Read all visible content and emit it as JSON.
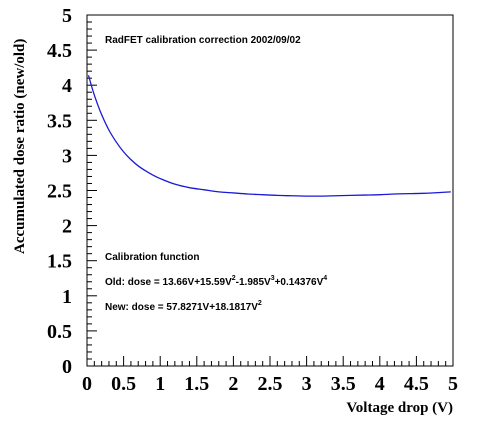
{
  "chart_data": {
    "type": "line",
    "title": "RadFET calibration correction 2002/09/02",
    "xlabel": "Voltage drop (V)",
    "ylabel": "Accumulated dose ratio (new/old)",
    "xlim": [
      0,
      5
    ],
    "ylim": [
      0,
      5
    ],
    "xticks": [
      "0",
      "0.5",
      "1",
      "1.5",
      "2",
      "2.5",
      "3",
      "3.5",
      "4",
      "4.5",
      "5"
    ],
    "yticks": [
      "0",
      "0.5",
      "1",
      "1.5",
      "2",
      "2.5",
      "3",
      "3.5",
      "4",
      "4.5",
      "5"
    ],
    "grid": false,
    "series": [
      {
        "color": "#1a1ad6",
        "x": [
          0.02,
          0.1,
          0.2,
          0.3,
          0.4,
          0.5,
          0.6,
          0.7,
          0.8,
          0.9,
          1.0,
          1.2,
          1.4,
          1.6,
          1.8,
          2.0,
          2.2,
          2.4,
          2.6,
          2.8,
          3.0,
          3.2,
          3.4,
          3.6,
          3.8,
          4.0,
          4.2,
          4.4,
          4.6,
          4.8,
          4.97
        ],
        "y": [
          4.14,
          3.86,
          3.58,
          3.36,
          3.19,
          3.05,
          2.94,
          2.85,
          2.78,
          2.72,
          2.67,
          2.59,
          2.54,
          2.51,
          2.48,
          2.465,
          2.45,
          2.44,
          2.43,
          2.425,
          2.42,
          2.42,
          2.425,
          2.43,
          2.435,
          2.44,
          2.45,
          2.455,
          2.46,
          2.47,
          2.48
        ]
      }
    ],
    "annotations": {
      "heading": "Calibration function",
      "old": {
        "prefix": "Old: dose = 13.66V+15.59V",
        "sup1": "2",
        "mid1": "-1.985V",
        "sup2": "3",
        "mid2": "+0.14376V",
        "sup3": "4"
      },
      "new": {
        "prefix": "New: dose = 57.8271V+18.1817V",
        "sup1": "2"
      }
    }
  }
}
